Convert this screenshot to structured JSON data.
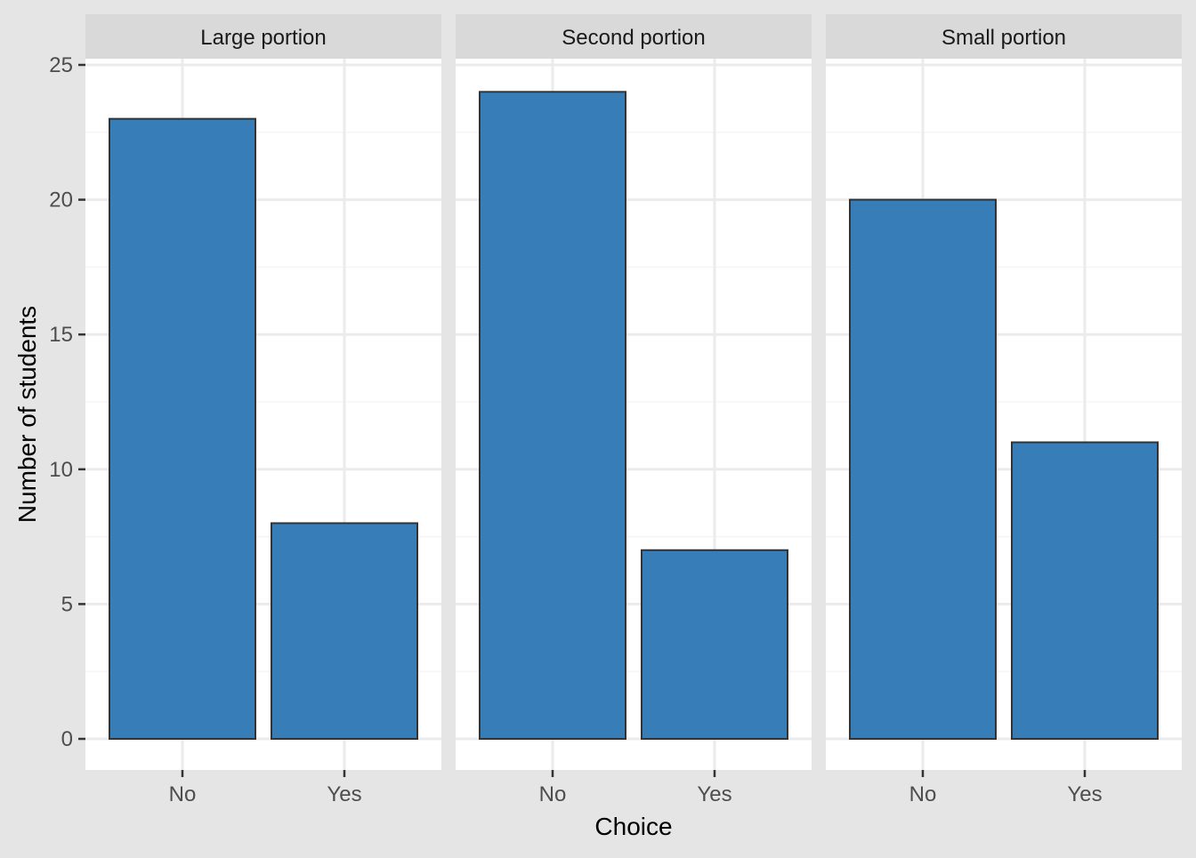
{
  "chart_data": {
    "type": "bar",
    "facet_type": "faceted-bar",
    "categories": [
      "No",
      "Yes"
    ],
    "panels": [
      {
        "label": "Large portion",
        "values": [
          23,
          8
        ]
      },
      {
        "label": "Second portion",
        "values": [
          24,
          7
        ]
      },
      {
        "label": "Small portion",
        "values": [
          20,
          11
        ]
      }
    ],
    "xlabel": "Choice",
    "ylabel": "Number of students",
    "ylim": [
      0,
      26.2
    ],
    "yticks": [
      0,
      5,
      10,
      15,
      20,
      25
    ],
    "grid": true,
    "colors": {
      "bar_fill": "#377eb8",
      "bar_stroke": "#333333",
      "panel_bg": "#ffffff",
      "strip_bg": "#d9d9d9",
      "gridline": "#ebebeb",
      "plot_bg": "#e5e5e5",
      "axis_text": "#4d4d4d",
      "title_text": "#000000"
    }
  }
}
